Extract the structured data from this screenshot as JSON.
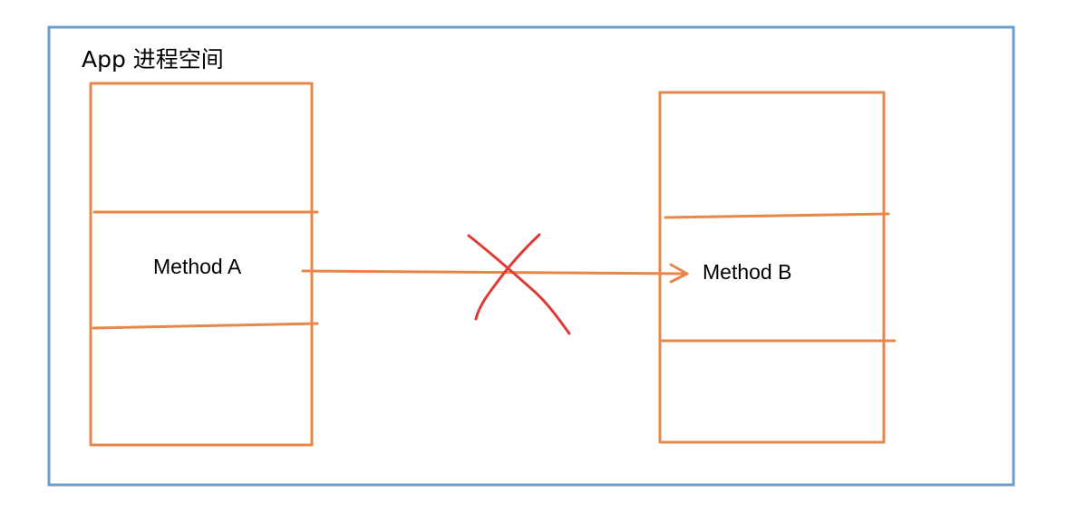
{
  "diagram": {
    "process_space_label": "App 进程空间",
    "stack_left": {
      "method_label": "Method A"
    },
    "stack_right": {
      "method_label": "Method B"
    },
    "call_arrow": {
      "from": "Method A",
      "to": "Method B",
      "crossed_out": true
    },
    "colors": {
      "process_border": "#6f9dc9",
      "stack_stroke": "#e8874a",
      "cross_mark": "#de3b35",
      "text": "#000000"
    }
  }
}
